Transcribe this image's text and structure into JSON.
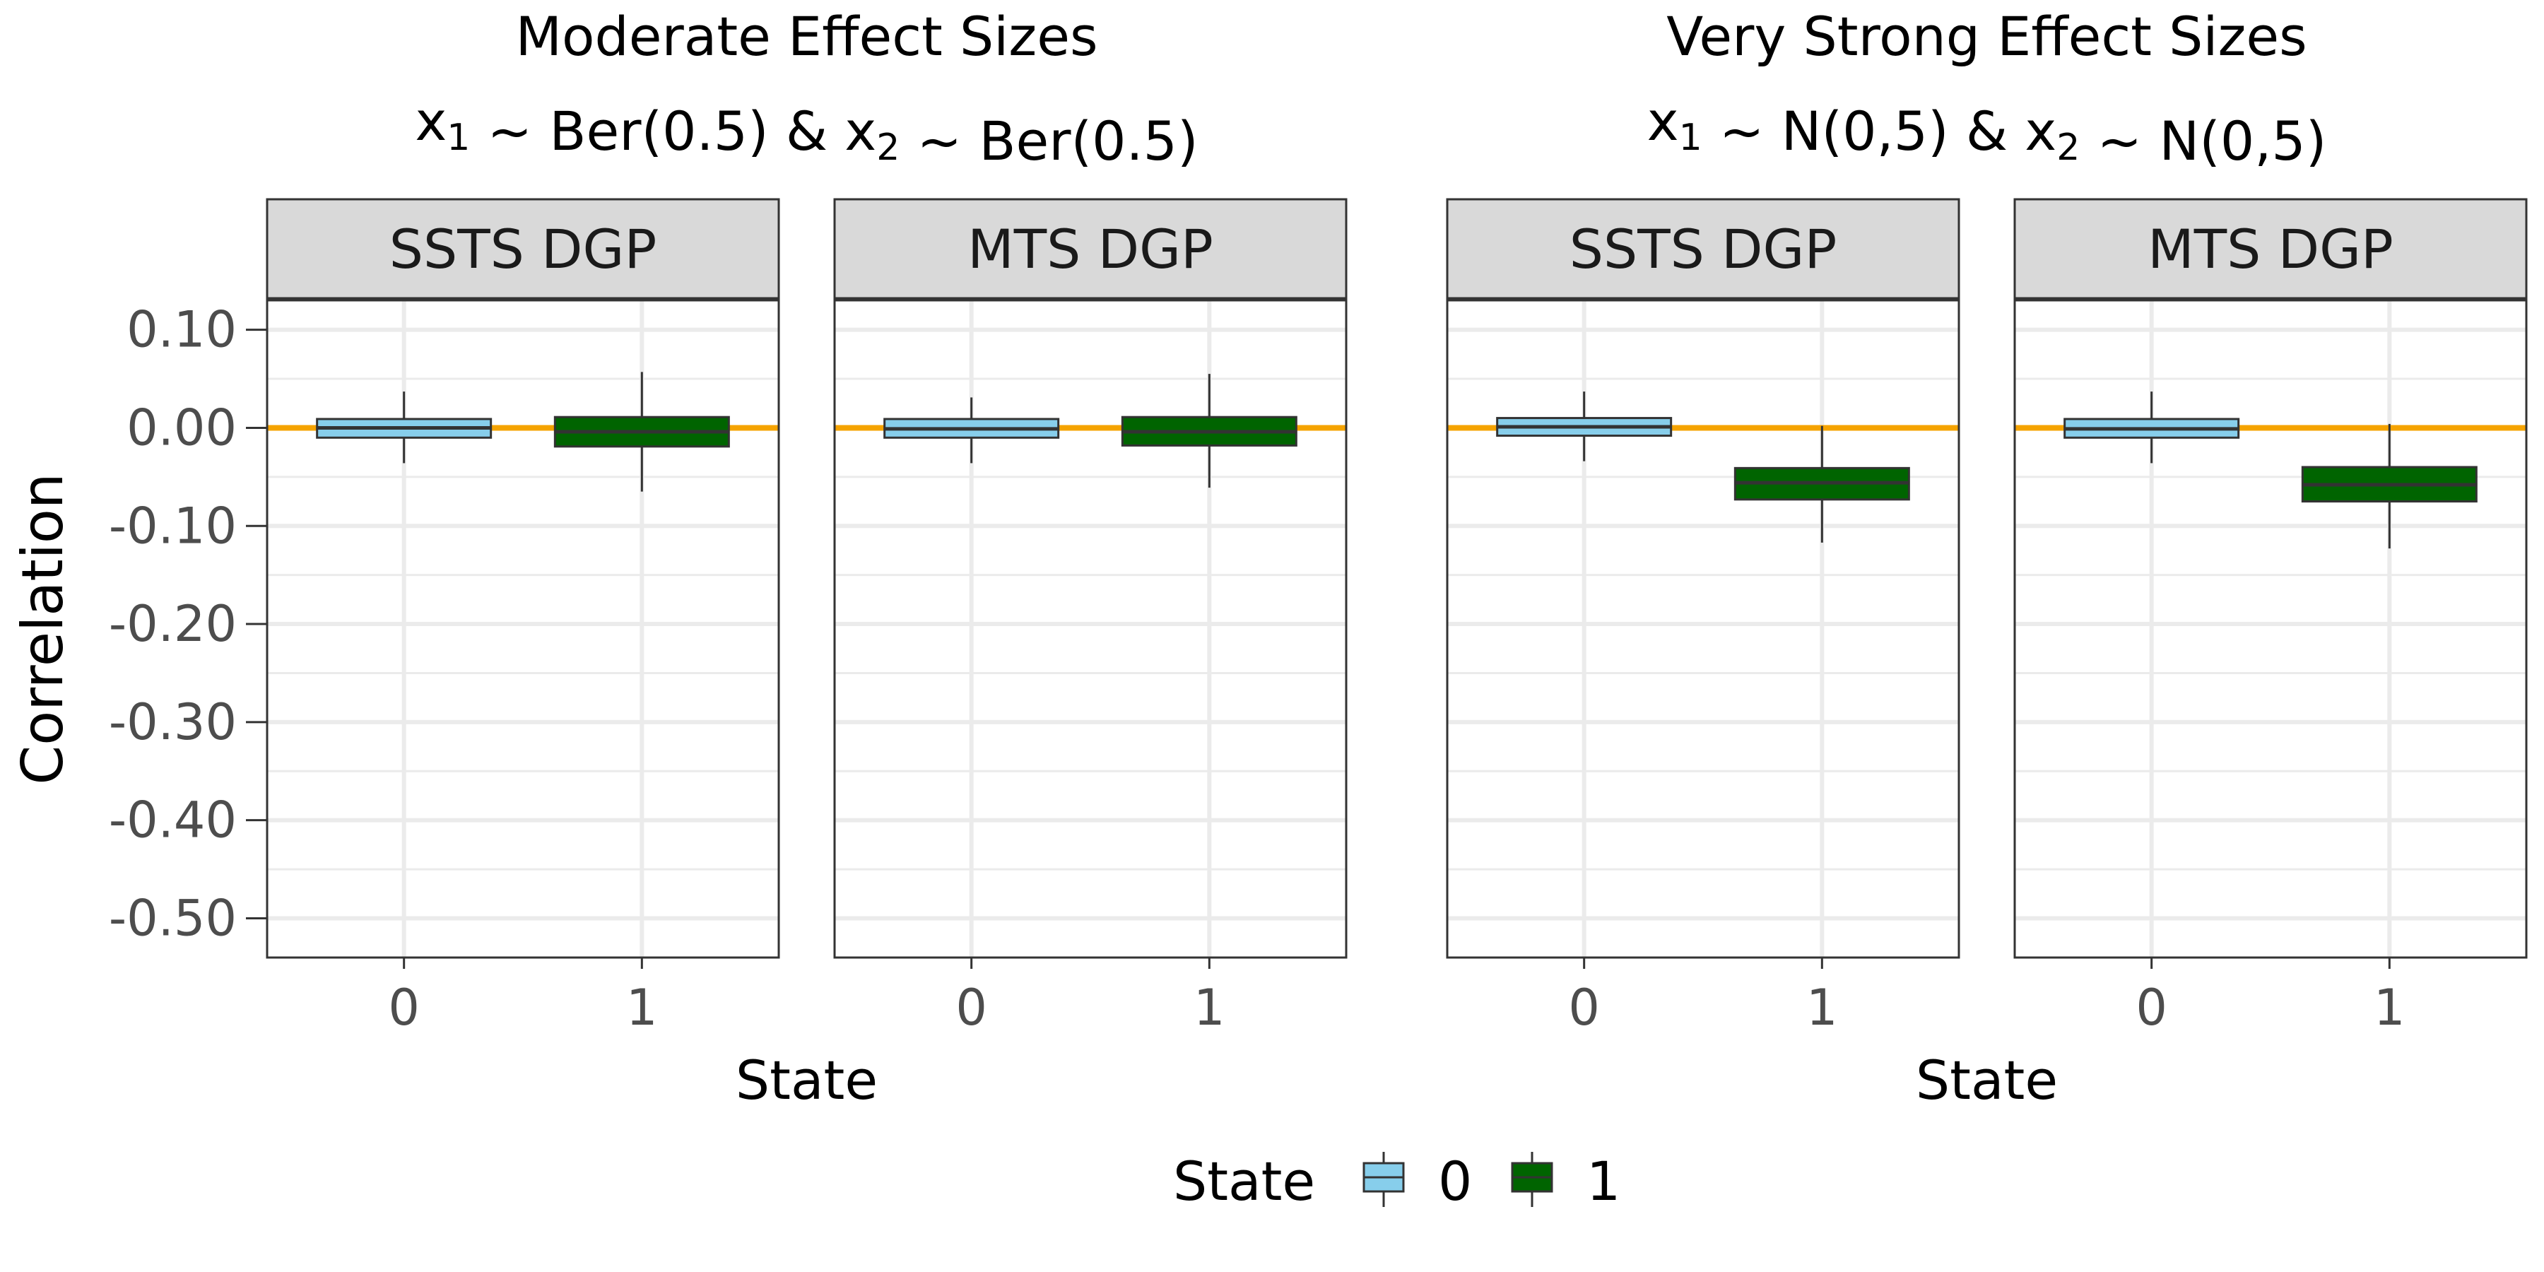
{
  "chart_data": {
    "type": "box",
    "ylabel": "Correlation",
    "ylim": [
      -0.54,
      0.13
    ],
    "yticks": [
      0.1,
      0.0,
      -0.1,
      -0.2,
      -0.3,
      -0.4,
      -0.5
    ],
    "ytick_labels": [
      "0.10",
      "0.00",
      "-0.10",
      "-0.20",
      "-0.30",
      "-0.40",
      "-0.50"
    ],
    "categories": [
      "0",
      "1"
    ],
    "reference_line": {
      "y": 0,
      "color": "#F5A300"
    },
    "colors": {
      "0": "#87CEEB",
      "1": "#006400",
      "strip_fill": "#D9D9D9",
      "grid": "#EBEBEB"
    },
    "legend": {
      "title": "State",
      "position": "bottom",
      "entries": [
        "0",
        "1"
      ]
    },
    "groups": [
      {
        "title_line1": "Moderate Effect Sizes",
        "title_line2": {
          "x1": "x",
          "sub1": "1",
          "mid": " ~ Ber(0.5) & ",
          "x2": "x",
          "sub2": "2",
          "end": " ~ Ber(0.5)"
        },
        "xlabel": "State",
        "panels": [
          {
            "strip": "SSTS DGP",
            "boxes": [
              {
                "state": "0",
                "min": -0.036,
                "q1": -0.01,
                "median": 0.0,
                "q3": 0.009,
                "max": 0.037
              },
              {
                "state": "1",
                "min": -0.065,
                "q1": -0.019,
                "median": -0.004,
                "q3": 0.011,
                "max": 0.057
              }
            ]
          },
          {
            "strip": "MTS DGP",
            "boxes": [
              {
                "state": "0",
                "min": -0.036,
                "q1": -0.01,
                "median": -0.001,
                "q3": 0.009,
                "max": 0.031
              },
              {
                "state": "1",
                "min": -0.061,
                "q1": -0.018,
                "median": -0.004,
                "q3": 0.011,
                "max": 0.055
              }
            ]
          }
        ]
      },
      {
        "title_line1": "Very Strong Effect Sizes",
        "title_line2": {
          "x1": "x",
          "sub1": "1",
          "mid": " ~ N(0,5) & ",
          "x2": "x",
          "sub2": "2",
          "end": " ~ N(0,5)"
        },
        "xlabel": "State",
        "panels": [
          {
            "strip": "SSTS DGP",
            "boxes": [
              {
                "state": "0",
                "min": -0.034,
                "q1": -0.008,
                "median": 0.001,
                "q3": 0.01,
                "max": 0.037
              },
              {
                "state": "1",
                "min": -0.117,
                "q1": -0.073,
                "median": -0.056,
                "q3": -0.041,
                "max": 0.002
              }
            ]
          },
          {
            "strip": "MTS DGP",
            "boxes": [
              {
                "state": "0",
                "min": -0.036,
                "q1": -0.01,
                "median": -0.001,
                "q3": 0.009,
                "max": 0.037
              },
              {
                "state": "1",
                "min": -0.123,
                "q1": -0.075,
                "median": -0.058,
                "q3": -0.04,
                "max": 0.004
              }
            ]
          }
        ]
      }
    ]
  }
}
